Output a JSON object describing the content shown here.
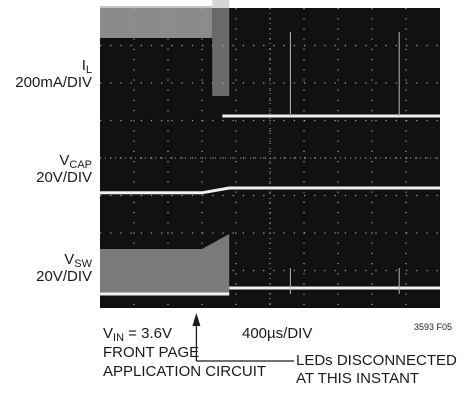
{
  "chart_data": {
    "type": "line",
    "title": "",
    "xlabel": "400µs/DIV",
    "x_divisions": 10,
    "y_divisions": 8,
    "grid": true,
    "background": "#111111",
    "channels": [
      {
        "name_main": "I",
        "name_sub": "L",
        "scale": "200mA/DIV",
        "level_before_div": 4.0,
        "level_after_div": 1.5,
        "ringing_between_div": [
          3.3,
          3.8
        ],
        "transition_at_div": 3.6,
        "spike_at_div": [
          5.6,
          8.8
        ]
      },
      {
        "name_main": "V",
        "name_sub": "CAP",
        "scale": "20V/DIV",
        "level_before_div": 0.7,
        "level_after_div": 1.0,
        "ramp_between_div": [
          3.0,
          3.8
        ]
      },
      {
        "name_main": "V",
        "name_sub": "SW",
        "scale": "20V/DIV",
        "switching_top_before_div": 1.5,
        "switching_top_ramp_end_div": 2.0,
        "ramp_between_div": [
          3.0,
          3.8
        ],
        "level_after_div": 0.15,
        "spike_at_div": [
          5.6,
          8.8
        ]
      }
    ]
  },
  "annotations": {
    "vin_main": "V",
    "vin_sub": "IN",
    "vin_value": " = 3.6V",
    "line2": "FRONT PAGE",
    "line3": "APPLICATION CIRCUIT",
    "event_line1": "LEDs DISCONNECTED",
    "event_line2": "AT THIS INSTANT",
    "figure_id": "3593 F05"
  },
  "colors": {
    "grid_dot": "#a8a8a8",
    "trace_light": "#f0f0f0",
    "trace_gray": "#b4b4b4",
    "sw_fill": "#7a7a7a"
  }
}
